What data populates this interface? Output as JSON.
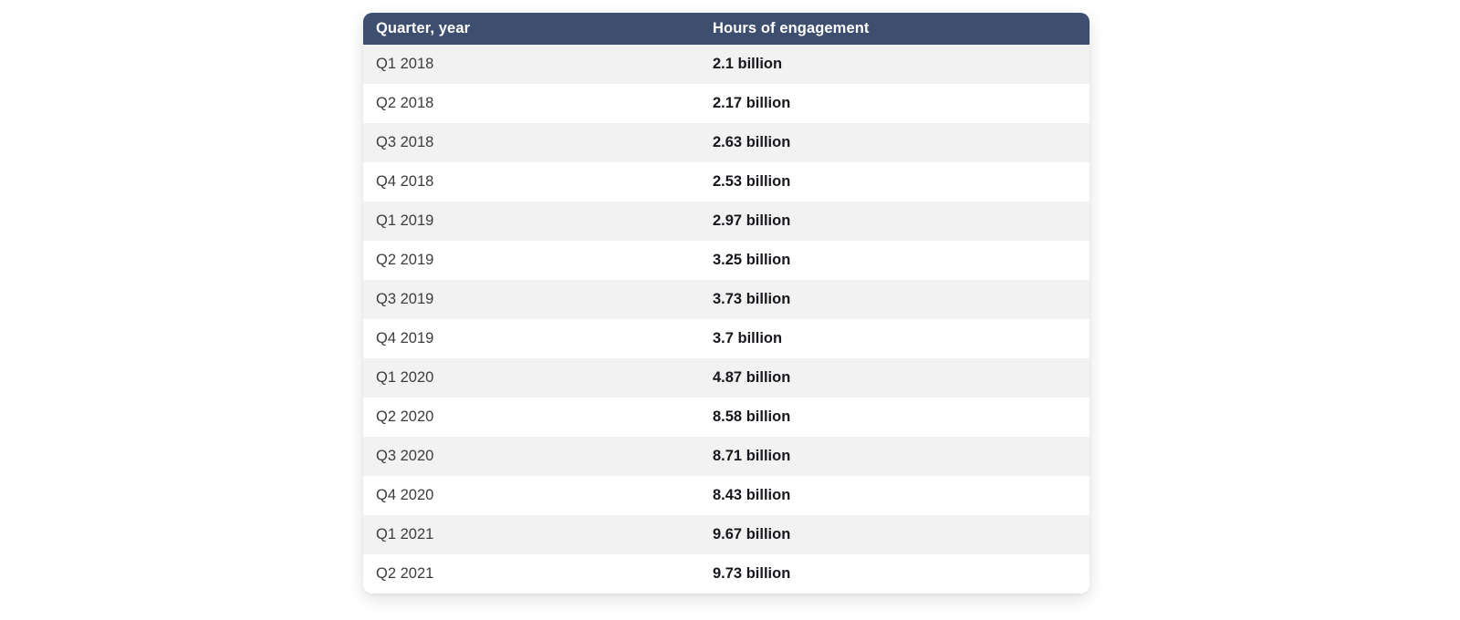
{
  "page": {
    "background": "#ffffff"
  },
  "table": {
    "columns": [
      "Quarter, year",
      "Hours of engagement"
    ],
    "rows": [
      {
        "quarter": "Q1 2018",
        "hours": "2.1 billion"
      },
      {
        "quarter": "Q2 2018",
        "hours": "2.17 billion"
      },
      {
        "quarter": "Q3 2018",
        "hours": "2.63 billion"
      },
      {
        "quarter": "Q4 2018",
        "hours": "2.53 billion"
      },
      {
        "quarter": "Q1 2019",
        "hours": "2.97 billion"
      },
      {
        "quarter": "Q2 2019",
        "hours": "3.25 billion"
      },
      {
        "quarter": "Q3 2019",
        "hours": "3.73 billion"
      },
      {
        "quarter": "Q4 2019",
        "hours": "3.7 billion"
      },
      {
        "quarter": "Q1 2020",
        "hours": "4.87 billion"
      },
      {
        "quarter": "Q2 2020",
        "hours": "8.58 billion"
      },
      {
        "quarter": "Q3 2020",
        "hours": "8.71 billion"
      },
      {
        "quarter": "Q4 2020",
        "hours": "8.43 billion"
      },
      {
        "quarter": "Q1 2021",
        "hours": "9.67 billion"
      },
      {
        "quarter": "Q2 2021",
        "hours": "9.73 billion"
      }
    ],
    "colors": {
      "header_bg": "#3e4e6e",
      "header_text": "#ffffff",
      "row_alt_bg": "#f2f2f2",
      "row_bg": "#ffffff",
      "quarter_text": "#3d3d3d",
      "hours_text": "#16181d"
    }
  },
  "chart_data": {
    "type": "table",
    "title": "",
    "columns": [
      "Quarter, year",
      "Hours of engagement"
    ],
    "categories": [
      "Q1 2018",
      "Q2 2018",
      "Q3 2018",
      "Q4 2018",
      "Q1 2019",
      "Q2 2019",
      "Q3 2019",
      "Q4 2019",
      "Q1 2020",
      "Q2 2020",
      "Q3 2020",
      "Q4 2020",
      "Q1 2021",
      "Q2 2021"
    ],
    "values_billions": [
      2.1,
      2.17,
      2.63,
      2.53,
      2.97,
      3.25,
      3.73,
      3.7,
      4.87,
      8.58,
      8.71,
      8.43,
      9.67,
      9.73
    ],
    "value_unit": "billion hours",
    "rows": [
      [
        "Q1 2018",
        "2.1 billion"
      ],
      [
        "Q2 2018",
        "2.17 billion"
      ],
      [
        "Q3 2018",
        "2.63 billion"
      ],
      [
        "Q4 2018",
        "2.53 billion"
      ],
      [
        "Q1 2019",
        "2.97 billion"
      ],
      [
        "Q2 2019",
        "3.25 billion"
      ],
      [
        "Q3 2019",
        "3.73 billion"
      ],
      [
        "Q4 2019",
        "3.7 billion"
      ],
      [
        "Q1 2020",
        "4.87 billion"
      ],
      [
        "Q2 2020",
        "8.58 billion"
      ],
      [
        "Q3 2020",
        "8.71 billion"
      ],
      [
        "Q4 2020",
        "8.43 billion"
      ],
      [
        "Q1 2021",
        "9.67 billion"
      ],
      [
        "Q2 2021",
        "9.73 billion"
      ]
    ]
  }
}
